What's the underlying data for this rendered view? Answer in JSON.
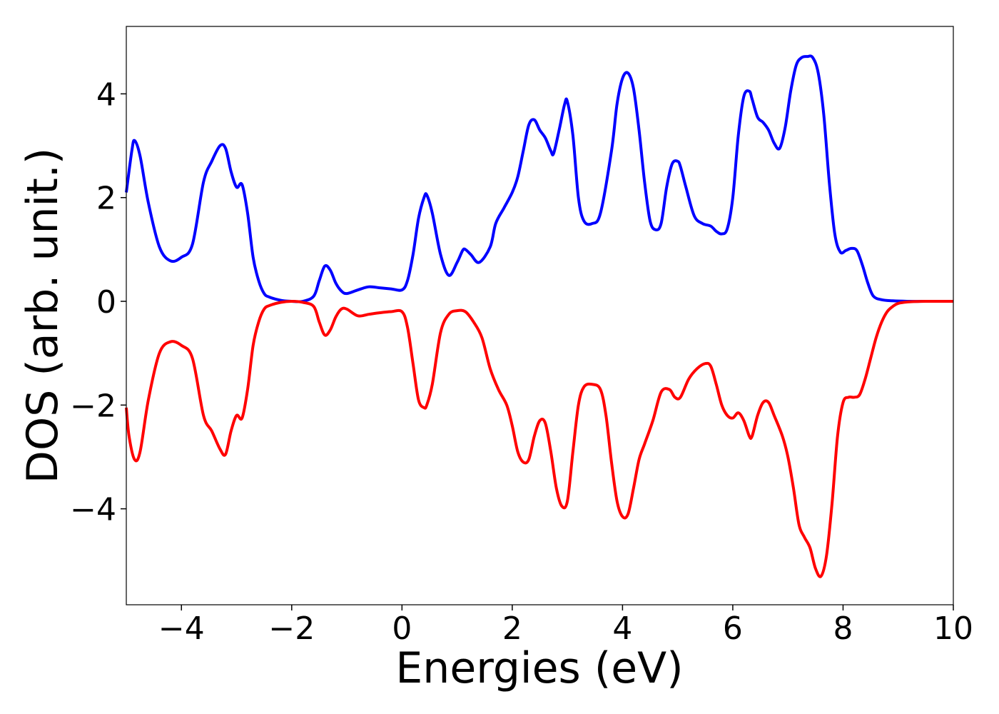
{
  "chart_data": {
    "type": "line",
    "title": "",
    "xlabel": "Energies (eV)",
    "ylabel": "DOS (arb. unit.)",
    "xlim": [
      -5,
      10
    ],
    "ylim": [
      -5.85,
      5.3
    ],
    "grid": false,
    "legend": "none",
    "xticks": [
      -4,
      -2,
      0,
      2,
      4,
      6,
      8,
      10
    ],
    "xtick_labels": [
      "−4",
      "−2",
      "0",
      "2",
      "4",
      "6",
      "8",
      "10"
    ],
    "yticks": [
      -4,
      -2,
      0,
      2,
      4
    ],
    "ytick_labels": [
      "−4",
      "−2",
      "0",
      "2",
      "4"
    ],
    "series": [
      {
        "color": "#0000ff",
        "x": [
          -5.0,
          -4.9,
          -4.85,
          -4.75,
          -4.6,
          -4.4,
          -4.2,
          -4.0,
          -3.8,
          -3.6,
          -3.45,
          -3.3,
          -3.2,
          -3.1,
          -3.0,
          -2.9,
          -2.8,
          -2.7,
          -2.6,
          -2.5,
          -2.4,
          -2.2,
          -2.0,
          -1.8,
          -1.6,
          -1.5,
          -1.4,
          -1.3,
          -1.2,
          -1.1,
          -1.0,
          -0.8,
          -0.6,
          -0.4,
          -0.2,
          0.0,
          0.1,
          0.2,
          0.3,
          0.4,
          0.45,
          0.55,
          0.7,
          0.85,
          1.0,
          1.1,
          1.15,
          1.25,
          1.4,
          1.6,
          1.7,
          1.85,
          2.0,
          2.1,
          2.2,
          2.3,
          2.4,
          2.5,
          2.6,
          2.7,
          2.75,
          2.85,
          2.95,
          3.0,
          3.1,
          3.2,
          3.3,
          3.45,
          3.6,
          3.8,
          3.9,
          4.0,
          4.1,
          4.2,
          4.3,
          4.4,
          4.5,
          4.6,
          4.7,
          4.8,
          4.9,
          5.0,
          5.05,
          5.15,
          5.3,
          5.45,
          5.6,
          5.7,
          5.8,
          5.9,
          6.0,
          6.1,
          6.2,
          6.3,
          6.35,
          6.45,
          6.55,
          6.65,
          6.75,
          6.85,
          6.95,
          7.05,
          7.15,
          7.25,
          7.35,
          7.45,
          7.55,
          7.65,
          7.75,
          7.85,
          7.95,
          8.05,
          8.15,
          8.25,
          8.35,
          8.45,
          8.55,
          8.7,
          8.9,
          9.2,
          9.6,
          10.0
        ],
        "y": [
          2.1,
          2.9,
          3.1,
          2.8,
          1.9,
          1.05,
          0.78,
          0.85,
          1.1,
          2.3,
          2.7,
          3.0,
          2.95,
          2.5,
          2.2,
          2.25,
          1.7,
          0.85,
          0.4,
          0.15,
          0.08,
          0.02,
          0.0,
          0.0,
          0.1,
          0.4,
          0.68,
          0.6,
          0.35,
          0.2,
          0.15,
          0.22,
          0.28,
          0.26,
          0.24,
          0.22,
          0.4,
          0.9,
          1.6,
          2.0,
          2.05,
          1.7,
          0.9,
          0.5,
          0.75,
          0.98,
          1.0,
          0.9,
          0.75,
          1.05,
          1.5,
          1.8,
          2.1,
          2.4,
          2.9,
          3.4,
          3.5,
          3.3,
          3.15,
          2.9,
          2.85,
          3.3,
          3.8,
          3.85,
          3.2,
          2.0,
          1.55,
          1.5,
          1.7,
          2.9,
          3.8,
          4.3,
          4.4,
          4.1,
          3.3,
          2.3,
          1.55,
          1.38,
          1.5,
          2.2,
          2.65,
          2.7,
          2.6,
          2.2,
          1.65,
          1.5,
          1.45,
          1.35,
          1.3,
          1.4,
          2.0,
          3.2,
          3.95,
          4.05,
          3.9,
          3.55,
          3.45,
          3.3,
          3.05,
          2.95,
          3.35,
          4.05,
          4.55,
          4.7,
          4.72,
          4.7,
          4.4,
          3.6,
          2.3,
          1.3,
          0.95,
          0.98,
          1.02,
          0.98,
          0.7,
          0.35,
          0.1,
          0.03,
          0.01,
          0.0,
          0.0,
          0.0
        ]
      },
      {
        "color": "#ff0000",
        "x": [
          -5.0,
          -4.95,
          -4.85,
          -4.75,
          -4.6,
          -4.4,
          -4.2,
          -4.0,
          -3.8,
          -3.6,
          -3.45,
          -3.3,
          -3.2,
          -3.1,
          -3.0,
          -2.9,
          -2.8,
          -2.7,
          -2.6,
          -2.5,
          -2.4,
          -2.2,
          -2.0,
          -1.8,
          -1.6,
          -1.5,
          -1.4,
          -1.3,
          -1.2,
          -1.1,
          -1.0,
          -0.8,
          -0.6,
          -0.4,
          -0.2,
          0.0,
          0.1,
          0.2,
          0.3,
          0.4,
          0.45,
          0.55,
          0.7,
          0.85,
          1.0,
          1.15,
          1.3,
          1.45,
          1.6,
          1.75,
          1.9,
          2.0,
          2.1,
          2.2,
          2.3,
          2.4,
          2.5,
          2.6,
          2.7,
          2.8,
          2.9,
          3.0,
          3.1,
          3.2,
          3.3,
          3.45,
          3.6,
          3.7,
          3.8,
          3.9,
          4.0,
          4.1,
          4.2,
          4.3,
          4.4,
          4.55,
          4.7,
          4.85,
          4.95,
          5.05,
          5.2,
          5.35,
          5.5,
          5.6,
          5.7,
          5.8,
          5.9,
          6.0,
          6.1,
          6.2,
          6.3,
          6.35,
          6.45,
          6.55,
          6.65,
          6.75,
          6.9,
          7.0,
          7.1,
          7.2,
          7.3,
          7.4,
          7.5,
          7.6,
          7.7,
          7.8,
          7.9,
          8.0,
          8.1,
          8.2,
          8.3,
          8.4,
          8.5,
          8.6,
          8.7,
          8.8,
          8.9,
          9.0,
          9.2,
          9.5,
          10.0
        ],
        "y": [
          -2.05,
          -2.6,
          -3.05,
          -2.9,
          -1.9,
          -1.0,
          -0.78,
          -0.85,
          -1.1,
          -2.2,
          -2.5,
          -2.85,
          -2.95,
          -2.5,
          -2.2,
          -2.25,
          -1.7,
          -0.85,
          -0.4,
          -0.15,
          -0.08,
          -0.02,
          0.0,
          -0.02,
          -0.1,
          -0.4,
          -0.65,
          -0.55,
          -0.3,
          -0.15,
          -0.15,
          -0.28,
          -0.25,
          -0.22,
          -0.2,
          -0.2,
          -0.5,
          -1.2,
          -1.9,
          -2.05,
          -2.0,
          -1.6,
          -0.6,
          -0.25,
          -0.18,
          -0.2,
          -0.4,
          -0.7,
          -1.3,
          -1.7,
          -2.0,
          -2.4,
          -2.9,
          -3.1,
          -3.05,
          -2.6,
          -2.3,
          -2.35,
          -2.9,
          -3.6,
          -3.95,
          -3.85,
          -2.9,
          -2.0,
          -1.65,
          -1.6,
          -1.7,
          -2.2,
          -3.1,
          -3.85,
          -4.15,
          -4.1,
          -3.6,
          -3.05,
          -2.75,
          -2.3,
          -1.75,
          -1.7,
          -1.85,
          -1.85,
          -1.5,
          -1.3,
          -1.2,
          -1.25,
          -1.6,
          -2.0,
          -2.2,
          -2.25,
          -2.15,
          -2.3,
          -2.6,
          -2.6,
          -2.2,
          -1.95,
          -1.95,
          -2.2,
          -2.6,
          -3.0,
          -3.6,
          -4.3,
          -4.55,
          -4.75,
          -5.15,
          -5.3,
          -4.9,
          -3.9,
          -2.6,
          -1.95,
          -1.85,
          -1.85,
          -1.8,
          -1.5,
          -1.1,
          -0.7,
          -0.4,
          -0.2,
          -0.1,
          -0.04,
          -0.01,
          0.0,
          0.0
        ]
      }
    ]
  }
}
